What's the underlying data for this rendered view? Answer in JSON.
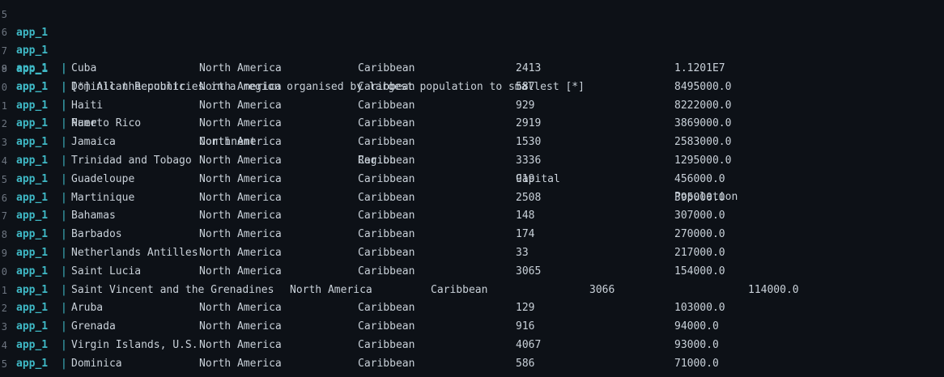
{
  "service": "app_1",
  "separator": "|",
  "top_partial": {
    "gutter": "5",
    "service": "app_1"
  },
  "header_line": {
    "gutter": "6",
    "text": "[*] All the countries in a region organised by largest population to smallest [*]"
  },
  "blank_line": {
    "gutter": "7"
  },
  "columns": [
    "Name",
    "Continent",
    "Region",
    "Capital",
    "Population"
  ],
  "columns_gutter": "8",
  "rows": [
    {
      "gutter": "9",
      "name": "Cuba",
      "continent": "North America",
      "region": "Caribbean",
      "capital": "2413",
      "population": "1.1201E7"
    },
    {
      "gutter": "0",
      "name": "Dominican Republic",
      "continent": "North America",
      "region": "Caribbean",
      "capital": "587",
      "population": "8495000.0"
    },
    {
      "gutter": "1",
      "name": "Haiti",
      "continent": "North America",
      "region": "Caribbean",
      "capital": "929",
      "population": "8222000.0"
    },
    {
      "gutter": "2",
      "name": "Puerto Rico",
      "continent": "North America",
      "region": "Caribbean",
      "capital": "2919",
      "population": "3869000.0"
    },
    {
      "gutter": "3",
      "name": "Jamaica",
      "continent": "North America",
      "region": "Caribbean",
      "capital": "1530",
      "population": "2583000.0"
    },
    {
      "gutter": "4",
      "name": "Trinidad and Tobago",
      "continent": "North America",
      "region": "Caribbean",
      "capital": "3336",
      "population": "1295000.0"
    },
    {
      "gutter": "5",
      "name": "Guadeloupe",
      "continent": "North America",
      "region": "Caribbean",
      "capital": "919",
      "population": "456000.0"
    },
    {
      "gutter": "6",
      "name": "Martinique",
      "continent": "North America",
      "region": "Caribbean",
      "capital": "2508",
      "population": "395000.0"
    },
    {
      "gutter": "7",
      "name": "Bahamas",
      "continent": "North America",
      "region": "Caribbean",
      "capital": "148",
      "population": "307000.0"
    },
    {
      "gutter": "8",
      "name": "Barbados",
      "continent": "North America",
      "region": "Caribbean",
      "capital": "174",
      "population": "270000.0"
    },
    {
      "gutter": "9",
      "name": "Netherlands Antilles",
      "continent": "North America",
      "region": "Caribbean",
      "capital": "33",
      "population": "217000.0"
    },
    {
      "gutter": "0",
      "name": "Saint Lucia",
      "continent": "North America",
      "region": "Caribbean",
      "capital": "3065",
      "population": "154000.0"
    },
    {
      "gutter": "1",
      "name": "Saint Vincent and the Grenadines",
      "continent": "North America",
      "region": "Caribbean",
      "capital": "3066",
      "population": "114000.0",
      "shifted": true
    },
    {
      "gutter": "2",
      "name": "Aruba",
      "continent": "North America",
      "region": "Caribbean",
      "capital": "129",
      "population": "103000.0"
    },
    {
      "gutter": "3",
      "name": "Grenada",
      "continent": "North America",
      "region": "Caribbean",
      "capital": "916",
      "population": "94000.0"
    },
    {
      "gutter": "4",
      "name": "Virgin Islands, U.S.",
      "continent": "North America",
      "region": "Caribbean",
      "capital": "4067",
      "population": "93000.0"
    },
    {
      "gutter": "5",
      "name": "Dominica",
      "continent": "North America",
      "region": "Caribbean",
      "capital": "586",
      "population": "71000.0"
    }
  ]
}
